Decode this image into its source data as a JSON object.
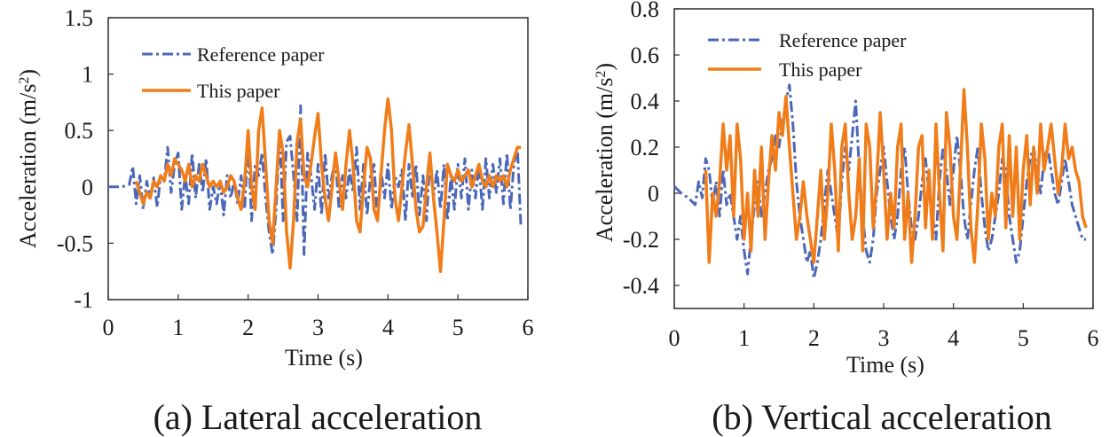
{
  "chart_data": [
    {
      "type": "line",
      "caption": "(a) Lateral acceleration",
      "xlabel": "Time (s)",
      "ylabel": "Acceleration (m/s2)",
      "xlim": [
        0,
        6
      ],
      "ylim": [
        -1,
        1.5
      ],
      "xticks": [
        0,
        1,
        2,
        3,
        4,
        5,
        6
      ],
      "yticks": [
        1.5,
        1,
        0.5,
        0,
        -0.5,
        -1
      ],
      "ytick_labels": [
        "1.5",
        "1",
        "0.5",
        "0",
        "-0.5",
        "-1"
      ],
      "legend": [
        "Reference paper",
        "This paper"
      ],
      "series": [
        {
          "name": "Reference paper",
          "color": "#4a67b8",
          "x": [
            0,
            0.1,
            0.2,
            0.3,
            0.35,
            0.4,
            0.45,
            0.5,
            0.55,
            0.6,
            0.65,
            0.7,
            0.75,
            0.8,
            0.85,
            0.9,
            0.95,
            1.0,
            1.05,
            1.1,
            1.15,
            1.2,
            1.25,
            1.3,
            1.35,
            1.4,
            1.45,
            1.5,
            1.55,
            1.6,
            1.65,
            1.7,
            1.75,
            1.8,
            1.85,
            1.9,
            1.95,
            2.0,
            2.05,
            2.1,
            2.15,
            2.2,
            2.25,
            2.3,
            2.35,
            2.4,
            2.45,
            2.5,
            2.55,
            2.6,
            2.65,
            2.7,
            2.75,
            2.8,
            2.85,
            2.9,
            2.95,
            3.0,
            3.05,
            3.1,
            3.15,
            3.2,
            3.25,
            3.3,
            3.35,
            3.4,
            3.45,
            3.5,
            3.55,
            3.6,
            3.65,
            3.7,
            3.75,
            3.8,
            3.85,
            3.9,
            3.95,
            4.0,
            4.05,
            4.1,
            4.15,
            4.2,
            4.25,
            4.3,
            4.35,
            4.4,
            4.45,
            4.5,
            4.55,
            4.6,
            4.65,
            4.7,
            4.75,
            4.8,
            4.85,
            4.9,
            4.95,
            5.0,
            5.05,
            5.1,
            5.15,
            5.2,
            5.25,
            5.3,
            5.35,
            5.4,
            5.45,
            5.5,
            5.55,
            5.6,
            5.65,
            5.7,
            5.75,
            5.8,
            5.85,
            5.9
          ],
          "values": [
            0,
            0,
            0,
            0.02,
            0.18,
            -0.15,
            0.1,
            -0.2,
            0.05,
            -0.1,
            0.08,
            -0.18,
            0.1,
            0.05,
            0.35,
            -0.05,
            0.2,
            0.3,
            -0.2,
            0.1,
            -0.15,
            0.3,
            -0.1,
            0.2,
            -0.05,
            0.25,
            -0.2,
            0.0,
            -0.15,
            0.05,
            -0.25,
            0.1,
            -0.1,
            0.05,
            -0.15,
            0.1,
            -0.2,
            0.4,
            -0.3,
            0.2,
            0.1,
            0.3,
            -0.1,
            -0.4,
            -0.6,
            -0.2,
            0.5,
            -0.3,
            0.4,
            0.45,
            0.1,
            -0.3,
            0.72,
            -0.6,
            0.3,
            0.1,
            -0.2,
            0.2,
            -0.25,
            0.3,
            -0.1,
            0.1,
            0.25,
            -0.2,
            0.1,
            -0.1,
            0.15,
            -0.05,
            0.35,
            -0.2,
            0.2,
            -0.25,
            0.1,
            0.2,
            -0.3,
            0.15,
            -0.1,
            0.2,
            -0.2,
            0.1,
            0.0,
            0.15,
            -0.3,
            0.2,
            -0.1,
            0.2,
            -0.25,
            0.1,
            -0.3,
            0.25,
            -0.1,
            0.15,
            -0.2,
            0.2,
            -0.3,
            0.1,
            -0.2,
            0.2,
            -0.1,
            0.25,
            -0.2,
            0.15,
            -0.1,
            0.2,
            -0.2,
            0.25,
            -0.1,
            0.2,
            -0.05,
            0.25,
            -0.15,
            0.3,
            -0.2,
            0.2,
            0.35,
            -0.35
          ]
        },
        {
          "name": "This paper",
          "color": "#f07d1a",
          "x": [
            0.4,
            0.45,
            0.5,
            0.55,
            0.6,
            0.65,
            0.7,
            0.75,
            0.8,
            0.85,
            0.9,
            0.95,
            1.0,
            1.05,
            1.1,
            1.15,
            1.2,
            1.25,
            1.3,
            1.35,
            1.4,
            1.45,
            1.5,
            1.55,
            1.6,
            1.65,
            1.7,
            1.75,
            1.8,
            1.85,
            1.9,
            1.95,
            2.0,
            2.05,
            2.1,
            2.15,
            2.2,
            2.25,
            2.3,
            2.35,
            2.4,
            2.45,
            2.5,
            2.55,
            2.6,
            2.65,
            2.7,
            2.75,
            2.8,
            2.85,
            2.9,
            2.95,
            3.0,
            3.05,
            3.1,
            3.15,
            3.2,
            3.25,
            3.3,
            3.35,
            3.4,
            3.45,
            3.5,
            3.55,
            3.6,
            3.65,
            3.7,
            3.75,
            3.8,
            3.85,
            3.9,
            3.95,
            4.0,
            4.05,
            4.1,
            4.15,
            4.2,
            4.25,
            4.3,
            4.35,
            4.4,
            4.45,
            4.5,
            4.55,
            4.6,
            4.65,
            4.7,
            4.75,
            4.8,
            4.85,
            4.9,
            4.95,
            5.0,
            5.05,
            5.1,
            5.15,
            5.2,
            5.25,
            5.3,
            5.35,
            5.4,
            5.45,
            5.5,
            5.55,
            5.6,
            5.65,
            5.7,
            5.75,
            5.8,
            5.85,
            5.9
          ],
          "values": [
            0.05,
            -0.05,
            -0.15,
            -0.05,
            -0.1,
            0.05,
            0.0,
            0.1,
            0.05,
            0.2,
            0.1,
            0.25,
            0.2,
            0.15,
            0.05,
            0.2,
            0.0,
            0.1,
            0.05,
            0.2,
            0.1,
            0.0,
            0.05,
            0.0,
            0.05,
            -0.05,
            0.0,
            0.1,
            0.05,
            -0.1,
            -0.2,
            0.05,
            0.5,
            0.0,
            -0.2,
            0.5,
            0.7,
            0.2,
            -0.3,
            -0.5,
            0.0,
            0.5,
            0.3,
            -0.4,
            -0.72,
            -0.3,
            0.4,
            0.6,
            0.1,
            0.0,
            0.2,
            0.45,
            0.65,
            0.2,
            -0.1,
            -0.3,
            0.0,
            0.3,
            0.05,
            -0.2,
            0.2,
            0.5,
            0.2,
            -0.3,
            -0.4,
            0.0,
            0.35,
            0.25,
            -0.2,
            -0.3,
            0.1,
            0.5,
            0.78,
            0.5,
            -0.1,
            -0.3,
            0.0,
            0.3,
            0.55,
            0.2,
            -0.2,
            -0.4,
            -0.35,
            0.0,
            0.3,
            -0.1,
            -0.4,
            -0.75,
            -0.3,
            0.2,
            0.1,
            0.05,
            0.15,
            0.05,
            0.1,
            0.15,
            0.0,
            0.1,
            0.2,
            0.05,
            0.0,
            0.1,
            0.0,
            0.1,
            0.05,
            0.1,
            0.0,
            0.15,
            0.25,
            0.35,
            0.35
          ]
        }
      ]
    },
    {
      "type": "line",
      "caption": "(b) Vertical acceleration",
      "xlabel": "Time (s)",
      "ylabel": "Acceleration (m/s2)",
      "xlim": [
        0,
        6
      ],
      "ylim": [
        -0.5,
        0.8
      ],
      "xticks": [
        0,
        1,
        2,
        3,
        4,
        5,
        6
      ],
      "yticks": [
        0.8,
        0.6,
        0.4,
        0.2,
        0,
        -0.2,
        -0.4
      ],
      "ytick_labels": [
        "0.8",
        "0.6",
        "0.4",
        "0.2",
        "0",
        "-0.2",
        "-0.4"
      ],
      "legend": [
        "Reference paper",
        "This paper"
      ],
      "series": [
        {
          "name": "Reference paper",
          "color": "#4a67b8",
          "x": [
            0,
            0.1,
            0.2,
            0.3,
            0.35,
            0.4,
            0.45,
            0.5,
            0.55,
            0.6,
            0.65,
            0.7,
            0.75,
            0.8,
            0.85,
            0.9,
            0.95,
            1.0,
            1.05,
            1.1,
            1.15,
            1.2,
            1.25,
            1.3,
            1.35,
            1.4,
            1.45,
            1.5,
            1.55,
            1.6,
            1.65,
            1.7,
            1.75,
            1.8,
            1.85,
            1.9,
            1.95,
            2.0,
            2.05,
            2.1,
            2.15,
            2.2,
            2.25,
            2.3,
            2.35,
            2.4,
            2.45,
            2.5,
            2.55,
            2.6,
            2.65,
            2.7,
            2.75,
            2.8,
            2.85,
            2.9,
            2.95,
            3.0,
            3.05,
            3.1,
            3.15,
            3.2,
            3.25,
            3.3,
            3.35,
            3.4,
            3.45,
            3.5,
            3.55,
            3.6,
            3.65,
            3.7,
            3.75,
            3.8,
            3.85,
            3.9,
            3.95,
            4.0,
            4.05,
            4.1,
            4.15,
            4.2,
            4.25,
            4.3,
            4.35,
            4.4,
            4.45,
            4.5,
            4.55,
            4.6,
            4.65,
            4.7,
            4.75,
            4.8,
            4.85,
            4.9,
            4.95,
            5.0,
            5.05,
            5.1,
            5.15,
            5.2,
            5.25,
            5.3,
            5.35,
            5.4,
            5.45,
            5.5,
            5.55,
            5.6,
            5.65,
            5.7,
            5.75,
            5.8,
            5.85,
            5.9
          ],
          "values": [
            0.03,
            0.0,
            -0.02,
            -0.05,
            0.05,
            -0.02,
            0.15,
            0.1,
            -0.05,
            0.05,
            -0.1,
            0.1,
            -0.05,
            0.0,
            -0.1,
            -0.2,
            -0.1,
            -0.25,
            -0.35,
            -0.2,
            -0.05,
            0.05,
            -0.1,
            0.0,
            0.1,
            0.15,
            0.25,
            0.2,
            0.3,
            0.4,
            0.47,
            0.3,
            0.05,
            -0.1,
            -0.2,
            -0.3,
            -0.25,
            -0.37,
            -0.3,
            -0.2,
            -0.05,
            0.1,
            0.0,
            -0.1,
            -0.2,
            0.05,
            0.2,
            0.1,
            0.25,
            0.4,
            0.1,
            -0.1,
            -0.25,
            -0.3,
            -0.2,
            0.0,
            0.1,
            0.2,
            0.05,
            -0.1,
            -0.2,
            -0.1,
            0.1,
            0.2,
            0.0,
            -0.15,
            -0.2,
            -0.1,
            0.05,
            0.15,
            0.0,
            -0.1,
            -0.2,
            0.05,
            0.2,
            0.1,
            -0.05,
            0.1,
            0.25,
            0.1,
            -0.1,
            -0.2,
            -0.05,
            0.1,
            0.2,
            0.0,
            -0.15,
            -0.25,
            -0.2,
            -0.1,
            0.0,
            0.15,
            0.1,
            -0.1,
            -0.2,
            -0.3,
            -0.25,
            -0.1,
            0.05,
            0.15,
            0.2,
            0.1,
            0.0,
            0.15,
            0.2,
            0.1,
            0.0,
            -0.05,
            0.05,
            0.15,
            0.05,
            -0.05,
            -0.1,
            -0.15,
            -0.2,
            -0.2
          ]
        },
        {
          "name": "This paper",
          "color": "#f07d1a",
          "x": [
            0.45,
            0.5,
            0.55,
            0.6,
            0.65,
            0.7,
            0.75,
            0.8,
            0.85,
            0.9,
            0.95,
            1.0,
            1.05,
            1.1,
            1.15,
            1.2,
            1.25,
            1.3,
            1.35,
            1.4,
            1.45,
            1.5,
            1.55,
            1.6,
            1.65,
            1.7,
            1.75,
            1.8,
            1.85,
            1.9,
            1.95,
            2.0,
            2.05,
            2.1,
            2.15,
            2.2,
            2.25,
            2.3,
            2.35,
            2.4,
            2.45,
            2.5,
            2.55,
            2.6,
            2.65,
            2.7,
            2.75,
            2.8,
            2.85,
            2.9,
            2.95,
            3.0,
            3.05,
            3.1,
            3.15,
            3.2,
            3.25,
            3.3,
            3.35,
            3.4,
            3.45,
            3.5,
            3.55,
            3.6,
            3.65,
            3.7,
            3.75,
            3.8,
            3.85,
            3.9,
            3.95,
            4.0,
            4.05,
            4.1,
            4.15,
            4.2,
            4.25,
            4.3,
            4.35,
            4.4,
            4.45,
            4.5,
            4.55,
            4.6,
            4.65,
            4.7,
            4.75,
            4.8,
            4.85,
            4.9,
            4.95,
            5.0,
            5.05,
            5.1,
            5.15,
            5.2,
            5.25,
            5.3,
            5.35,
            5.4,
            5.45,
            5.5,
            5.55,
            5.6,
            5.65,
            5.7,
            5.75,
            5.8,
            5.85,
            5.9
          ],
          "values": [
            0.1,
            -0.3,
            0.0,
            -0.1,
            0.05,
            0.3,
            0.1,
            0.25,
            -0.1,
            0.3,
            0.15,
            -0.2,
            0.0,
            -0.25,
            0.1,
            -0.1,
            0.2,
            -0.2,
            0.05,
            0.25,
            0.1,
            0.35,
            0.25,
            0.42,
            0.2,
            0.0,
            -0.2,
            -0.1,
            0.05,
            -0.1,
            -0.2,
            -0.3,
            -0.1,
            0.1,
            -0.2,
            0.0,
            0.3,
            0.1,
            -0.25,
            0.2,
            0.3,
            0.0,
            -0.2,
            -0.1,
            0.15,
            -0.25,
            0.3,
            0.2,
            -0.15,
            0.05,
            0.35,
            0.1,
            -0.2,
            0.0,
            -0.15,
            0.2,
            0.3,
            -0.2,
            0.0,
            -0.3,
            -0.1,
            0.2,
            0.25,
            -0.15,
            0.1,
            -0.2,
            0.3,
            0.0,
            -0.25,
            0.35,
            0.2,
            -0.1,
            -0.2,
            0.1,
            0.45,
            0.2,
            -0.15,
            -0.3,
            -0.05,
            0.3,
            0.15,
            -0.2,
            0.0,
            -0.1,
            0.2,
            0.3,
            -0.15,
            0.25,
            -0.1,
            0.2,
            -0.2,
            0.1,
            0.25,
            -0.05,
            0.2,
            0.0,
            0.3,
            0.1,
            0.2,
            0.3,
            0.15,
            0.0,
            0.1,
            0.3,
            0.15,
            0.2,
            0.1,
            0.05,
            -0.1,
            -0.15
          ]
        }
      ]
    }
  ]
}
